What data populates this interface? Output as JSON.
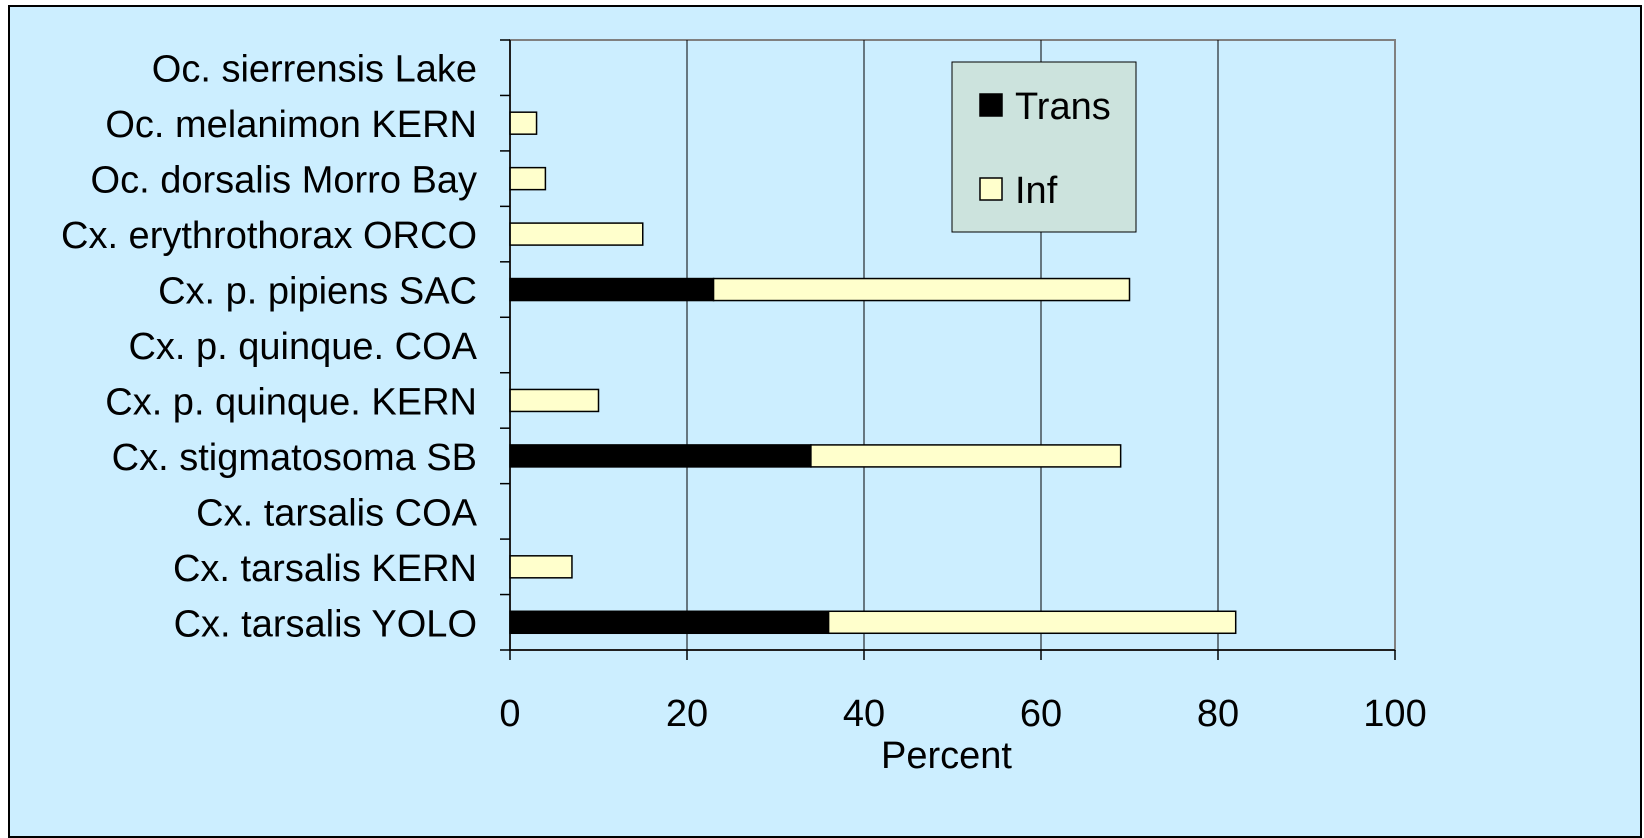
{
  "chart_data": {
    "type": "bar",
    "orientation": "horizontal",
    "stacked": true,
    "categories": [
      "Oc. sierrensis Lake",
      "Oc. melanimon KERN",
      "Oc. dorsalis Morro Bay",
      "Cx. erythrothorax ORCO",
      "Cx. p. pipiens SAC",
      "Cx. p. quinque. COA",
      "Cx. p. quinque. KERN",
      "Cx. stigmatosoma SB",
      "Cx. tarsalis COA",
      "Cx. tarsalis KERN",
      "Cx. tarsalis YOLO"
    ],
    "series": [
      {
        "name": "Trans",
        "color": "#000000",
        "values": [
          0,
          0,
          0,
          0,
          23,
          0,
          0,
          34,
          0,
          0,
          36
        ]
      },
      {
        "name": "Inf",
        "color": "#ffffcc",
        "values": [
          0,
          3,
          4,
          15,
          47,
          0,
          10,
          35,
          0,
          7,
          46
        ]
      }
    ],
    "xlabel": "Percent",
    "ylabel": "",
    "xlim": [
      0,
      100
    ],
    "xticks": [
      "0",
      "20",
      "40",
      "60",
      "80",
      "100"
    ],
    "grid": "vertical",
    "legend": "top-right",
    "background": "#cceeff",
    "legend_background": "#cce3dd"
  }
}
